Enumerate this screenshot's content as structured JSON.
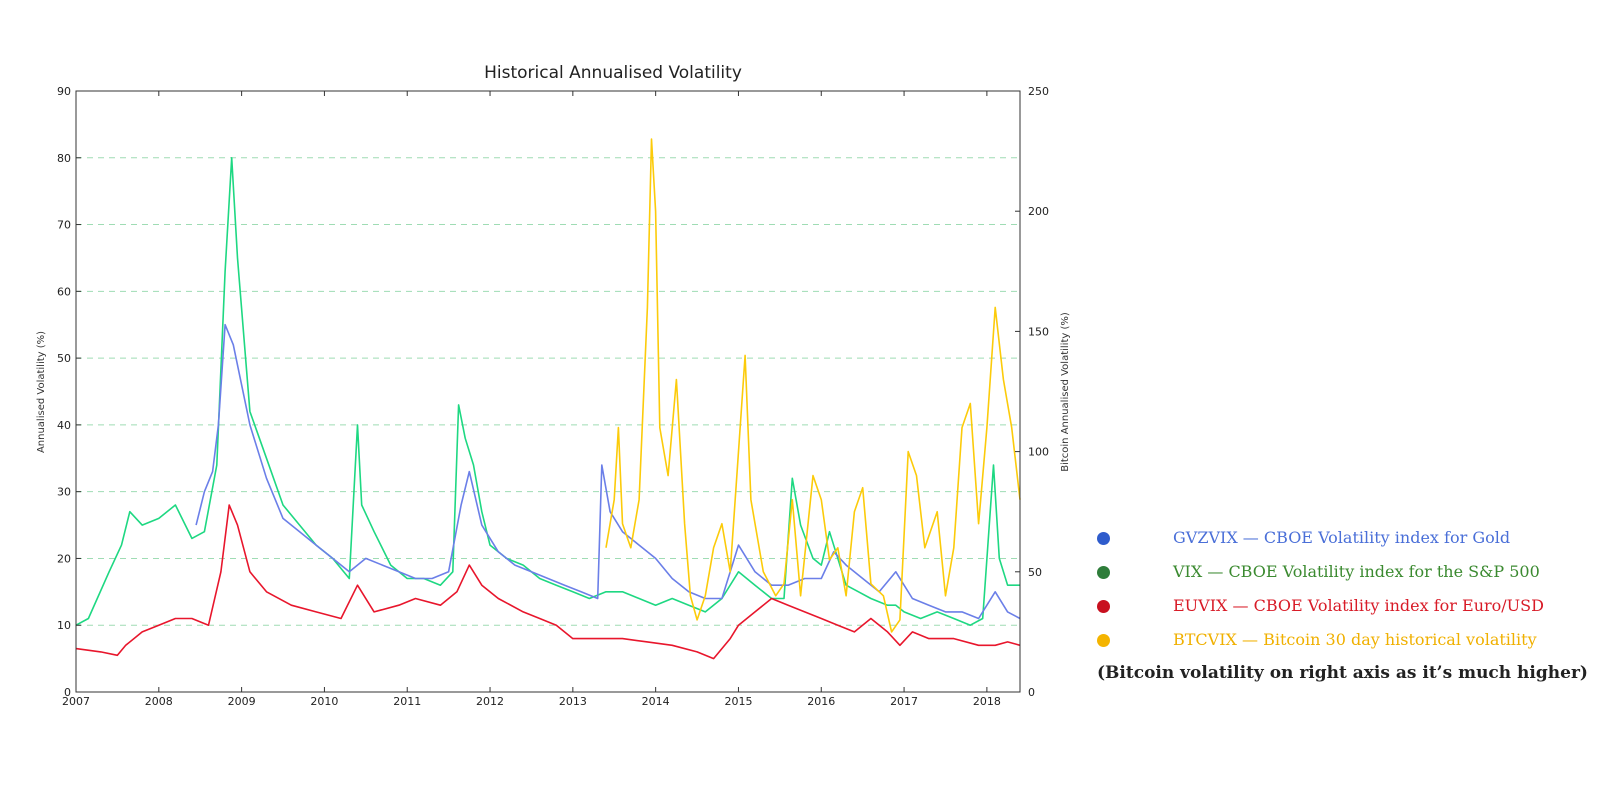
{
  "chart_data": {
    "type": "line",
    "title": "Historical Annualised Volatility",
    "ylabel": "Annualised Volatility (%)",
    "y2label": "Bitcoin Annualised Volatility (%)",
    "xlim": [
      2007,
      2018.4
    ],
    "ylim": [
      0,
      90
    ],
    "y2lim": [
      0,
      250
    ],
    "x_ticks": [
      2007,
      2008,
      2009,
      2010,
      2011,
      2012,
      2013,
      2014,
      2015,
      2016,
      2017,
      2018
    ],
    "y_ticks": [
      0,
      10,
      20,
      30,
      40,
      50,
      60,
      70,
      80,
      90
    ],
    "y2_ticks": [
      0,
      50,
      100,
      150,
      200,
      250
    ],
    "grid": "horizontal dashed",
    "series": [
      {
        "name": "VIX",
        "axis": "left",
        "color": "#1ed882",
        "x": [
          2007.0,
          2007.15,
          2007.4,
          2007.55,
          2007.65,
          2007.8,
          2008.0,
          2008.2,
          2008.4,
          2008.55,
          2008.7,
          2008.8,
          2008.88,
          2008.95,
          2009.1,
          2009.3,
          2009.5,
          2009.7,
          2009.9,
          2010.1,
          2010.3,
          2010.4,
          2010.45,
          2010.6,
          2010.8,
          2011.0,
          2011.2,
          2011.4,
          2011.55,
          2011.62,
          2011.7,
          2011.8,
          2011.9,
          2012.0,
          2012.2,
          2012.4,
          2012.6,
          2012.8,
          2013.0,
          2013.2,
          2013.4,
          2013.6,
          2013.8,
          2014.0,
          2014.2,
          2014.4,
          2014.6,
          2014.8,
          2015.0,
          2015.2,
          2015.4,
          2015.55,
          2015.65,
          2015.75,
          2015.9,
          2016.0,
          2016.1,
          2016.3,
          2016.45,
          2016.6,
          2016.8,
          2016.9,
          2017.0,
          2017.2,
          2017.4,
          2017.6,
          2017.8,
          2017.95,
          2018.08,
          2018.15,
          2018.25,
          2018.4
        ],
        "values": [
          10,
          11,
          18,
          22,
          27,
          25,
          26,
          28,
          23,
          24,
          34,
          63,
          80,
          65,
          42,
          35,
          28,
          25,
          22,
          20,
          17,
          40,
          28,
          24,
          19,
          17,
          17,
          16,
          18,
          43,
          38,
          34,
          27,
          22,
          20,
          19,
          17,
          16,
          15,
          14,
          15,
          15,
          14,
          13,
          14,
          13,
          12,
          14,
          18,
          16,
          14,
          14,
          32,
          25,
          20,
          19,
          24,
          16,
          15,
          14,
          13,
          13,
          12,
          11,
          12,
          11,
          10,
          11,
          34,
          20,
          16,
          16
        ]
      },
      {
        "name": "GVZVIX",
        "axis": "left",
        "color": "#6b7fe8",
        "x": [
          2008.45,
          2008.55,
          2008.65,
          2008.72,
          2008.8,
          2008.9,
          2009.0,
          2009.1,
          2009.3,
          2009.5,
          2009.7,
          2009.9,
          2010.1,
          2010.3,
          2010.5,
          2010.7,
          2010.9,
          2011.1,
          2011.3,
          2011.5,
          2011.65,
          2011.75,
          2011.9,
          2012.1,
          2012.3,
          2012.5,
          2012.7,
          2012.9,
          2013.1,
          2013.3,
          2013.35,
          2013.45,
          2013.6,
          2013.8,
          2014.0,
          2014.2,
          2014.4,
          2014.6,
          2014.8,
          2015.0,
          2015.2,
          2015.4,
          2015.6,
          2015.8,
          2016.0,
          2016.15,
          2016.3,
          2016.5,
          2016.7,
          2016.9,
          2017.1,
          2017.3,
          2017.5,
          2017.7,
          2017.9,
          2018.1,
          2018.25,
          2018.4
        ],
        "values": [
          25,
          30,
          33,
          40,
          55,
          52,
          46,
          40,
          32,
          26,
          24,
          22,
          20,
          18,
          20,
          19,
          18,
          17,
          17,
          18,
          28,
          33,
          25,
          21,
          19,
          18,
          17,
          16,
          15,
          14,
          34,
          27,
          24,
          22,
          20,
          17,
          15,
          14,
          14,
          22,
          18,
          16,
          16,
          17,
          17,
          21,
          19,
          17,
          15,
          18,
          14,
          13,
          12,
          12,
          11,
          15,
          12,
          11
        ]
      },
      {
        "name": "EUVIX",
        "axis": "left",
        "color": "#e8162c",
        "x": [
          2007.0,
          2007.3,
          2007.5,
          2007.6,
          2007.8,
          2008.0,
          2008.2,
          2008.4,
          2008.6,
          2008.75,
          2008.85,
          2008.95,
          2009.1,
          2009.3,
          2009.6,
          2009.9,
          2010.2,
          2010.4,
          2010.6,
          2010.9,
          2011.1,
          2011.4,
          2011.6,
          2011.75,
          2011.9,
          2012.1,
          2012.4,
          2012.6,
          2012.8,
          2013.0,
          2013.3,
          2013.6,
          2013.9,
          2014.2,
          2014.5,
          2014.7,
          2014.9,
          2015.0,
          2015.2,
          2015.4,
          2015.6,
          2015.8,
          2016.0,
          2016.2,
          2016.4,
          2016.6,
          2016.8,
          2016.95,
          2017.1,
          2017.3,
          2017.6,
          2017.9,
          2018.1,
          2018.25,
          2018.4
        ],
        "values": [
          6.5,
          6,
          5.5,
          7,
          9,
          10,
          11,
          11,
          10,
          18,
          28,
          25,
          18,
          15,
          13,
          12,
          11,
          16,
          12,
          13,
          14,
          13,
          15,
          19,
          16,
          14,
          12,
          11,
          10,
          8,
          8,
          8,
          7.5,
          7,
          6,
          5,
          8,
          10,
          12,
          14,
          13,
          12,
          11,
          10,
          9,
          11,
          9,
          7,
          9,
          8,
          8,
          7,
          7,
          7.5,
          7
        ]
      },
      {
        "name": "BTCVIX",
        "axis": "right",
        "color": "#fccb0a",
        "x": [
          2013.4,
          2013.5,
          2013.55,
          2013.6,
          2013.7,
          2013.8,
          2013.9,
          2013.95,
          2014.0,
          2014.05,
          2014.15,
          2014.25,
          2014.35,
          2014.42,
          2014.5,
          2014.6,
          2014.7,
          2014.8,
          2014.9,
          2015.0,
          2015.08,
          2015.15,
          2015.3,
          2015.45,
          2015.55,
          2015.65,
          2015.75,
          2015.9,
          2016.0,
          2016.1,
          2016.2,
          2016.3,
          2016.4,
          2016.5,
          2016.6,
          2016.75,
          2016.85,
          2016.95,
          2017.05,
          2017.15,
          2017.25,
          2017.4,
          2017.5,
          2017.6,
          2017.7,
          2017.8,
          2017.9,
          2018.0,
          2018.1,
          2018.2,
          2018.3,
          2018.4
        ],
        "values": [
          60,
          80,
          110,
          70,
          60,
          80,
          160,
          230,
          200,
          110,
          90,
          130,
          70,
          40,
          30,
          40,
          60,
          70,
          50,
          100,
          140,
          80,
          50,
          40,
          45,
          80,
          40,
          90,
          80,
          55,
          60,
          40,
          75,
          85,
          45,
          40,
          25,
          30,
          100,
          90,
          60,
          75,
          40,
          60,
          110,
          120,
          70,
          110,
          160,
          130,
          110,
          80
        ]
      }
    ]
  },
  "legend": [
    {
      "label": "GVZVIX — CBOE Volatility index for Gold",
      "dot_color": "#2f5ccc",
      "text_color": "#4a6fd8"
    },
    {
      "label": "VIX — CBOE Volatility index for the S&P 500",
      "dot_color": "#2e7d3a",
      "text_color": "#3b8a30"
    },
    {
      "label": "EUVIX — CBOE Volatility index for Euro/USD",
      "dot_color": "#c8101f",
      "text_color": "#d81b27"
    },
    {
      "label": "BTCVIX — Bitcoin 30 day historical volatility",
      "dot_color": "#f4b400",
      "text_color": "#f0b000"
    }
  ],
  "legend_note": "(Bitcoin volatility on right axis as it’s much higher)"
}
